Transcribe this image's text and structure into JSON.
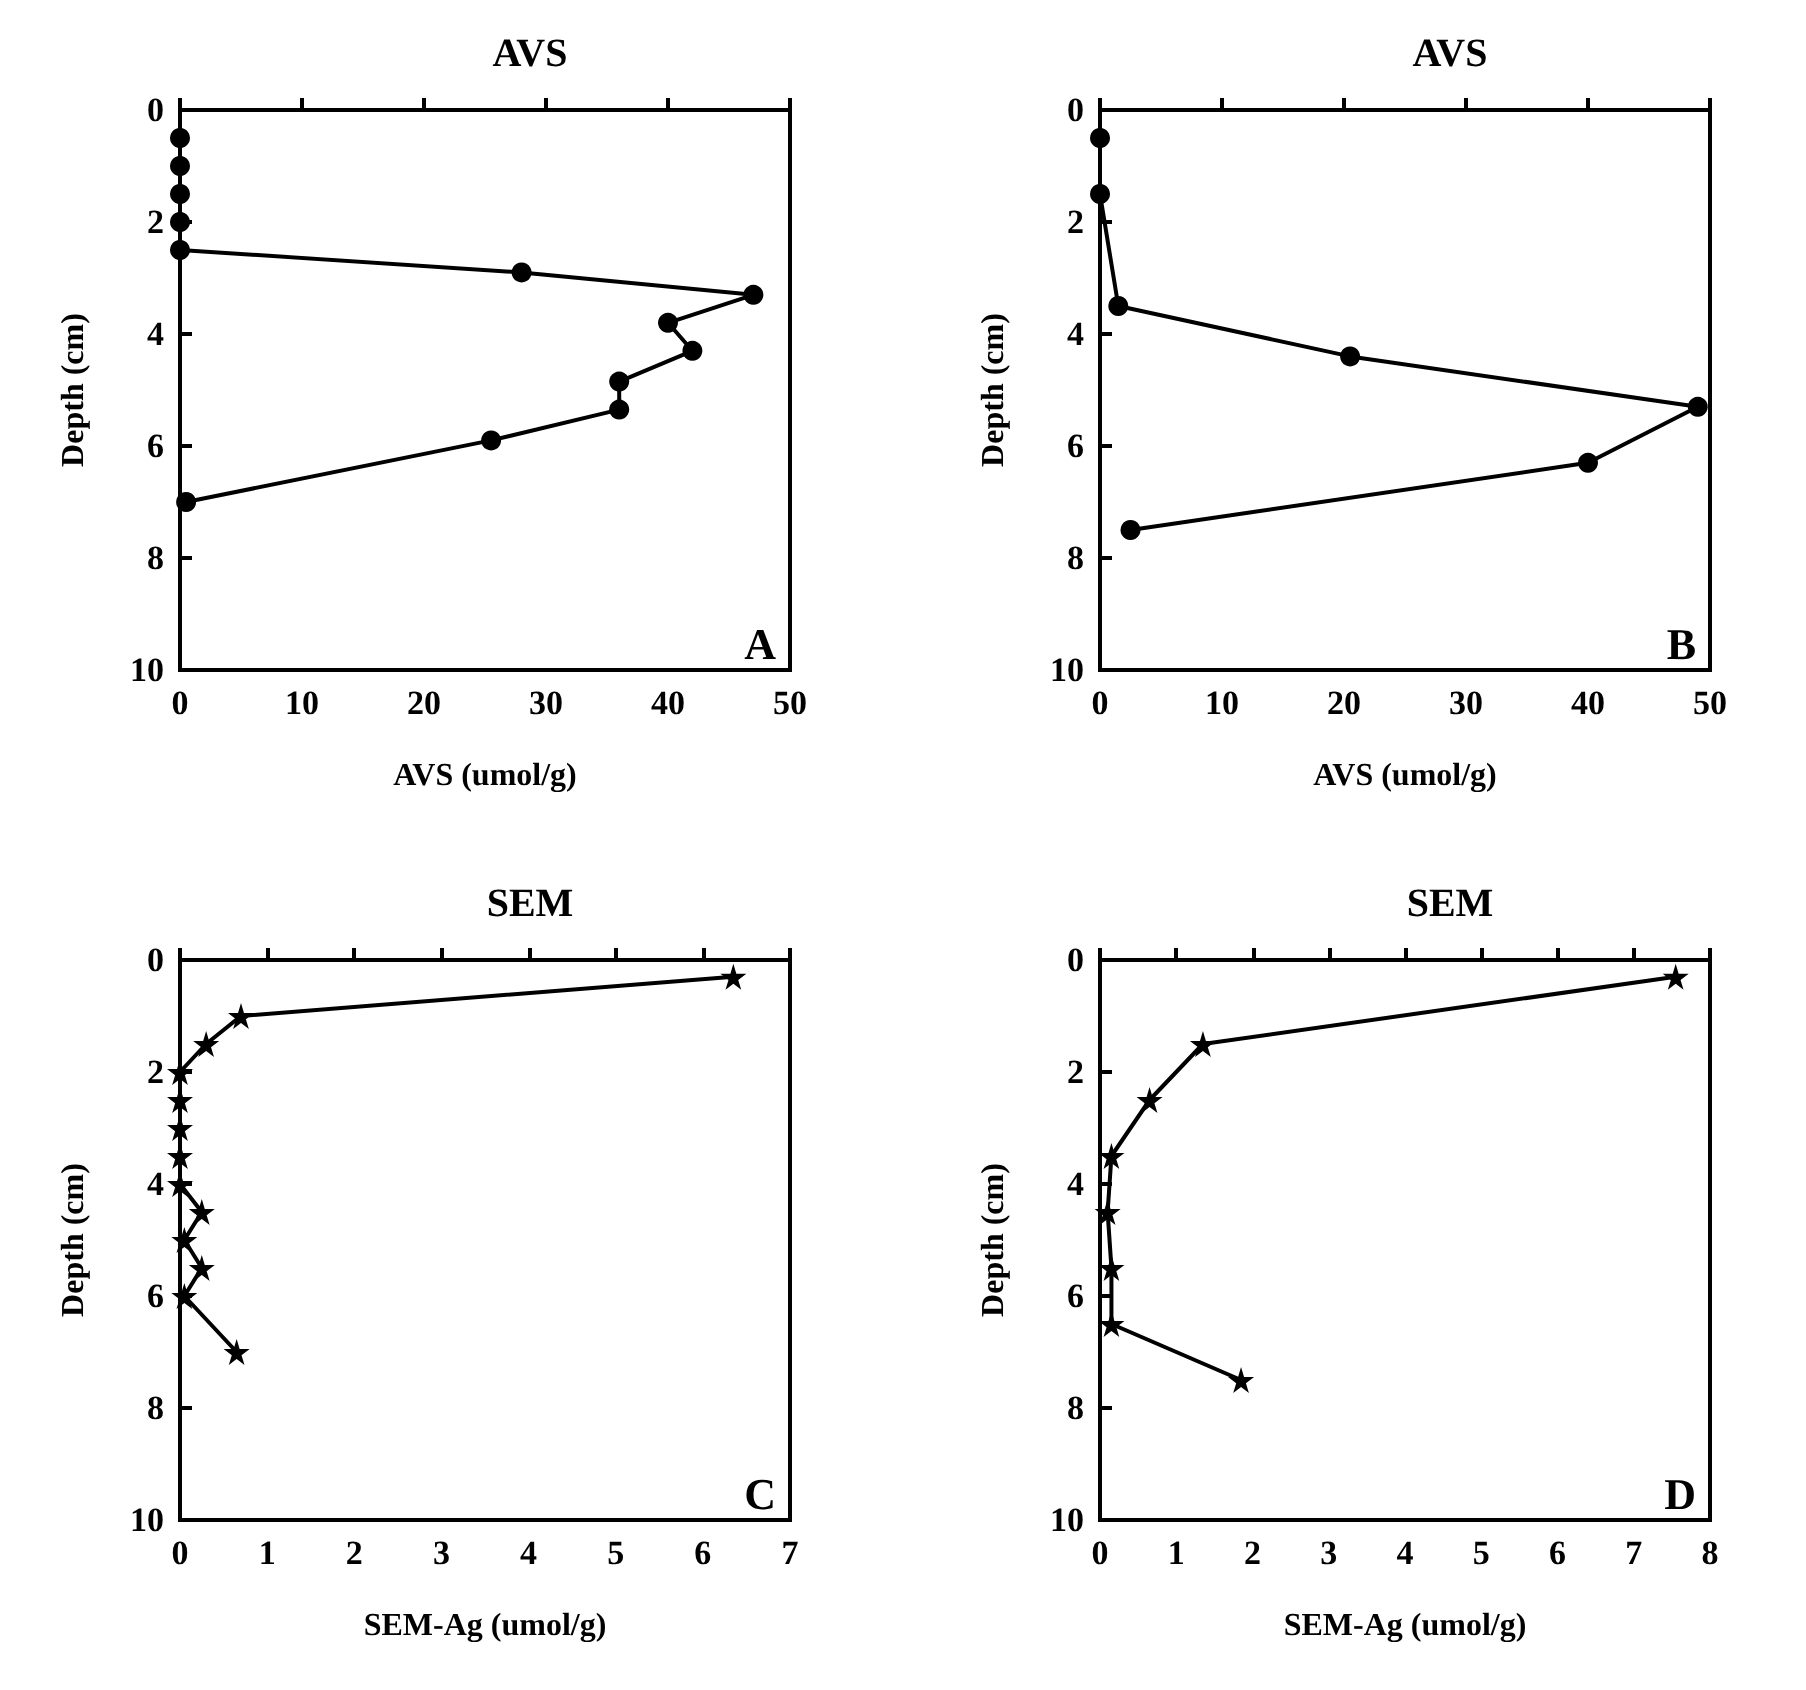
{
  "chart_data": [
    {
      "type": "line",
      "title": "AVS",
      "xlabel": "AVS (umol/g)",
      "ylabel": "Depth (cm)",
      "annotations": [
        "A"
      ],
      "x": [
        0,
        0,
        0,
        0,
        0,
        28,
        47,
        40,
        42,
        36,
        36,
        25.5,
        0.5
      ],
      "values": [
        0.5,
        1,
        1.5,
        2,
        2.5,
        2.9,
        3.3,
        3.8,
        4.3,
        4.85,
        5.35,
        5.9,
        7
      ],
      "color": "#000000",
      "marker": "circle",
      "line_style": "solid",
      "grid": false,
      "xlim": [
        0,
        50
      ],
      "xticks": [
        0,
        10,
        20,
        30,
        40,
        50
      ],
      "ylim": [
        10,
        0
      ],
      "yticks": [
        0,
        2,
        4,
        6,
        8,
        10
      ]
    },
    {
      "type": "line",
      "title": "AVS",
      "xlabel": "AVS (umol/g)",
      "ylabel": "Depth (cm)",
      "annotations": [
        "B"
      ],
      "x": [
        0,
        0,
        1.5,
        20.5,
        49,
        40,
        2.5
      ],
      "values": [
        0.5,
        1.5,
        3.5,
        4.4,
        5.3,
        6.3,
        7.5
      ],
      "color": "#000000",
      "marker": "circle",
      "line_style": "solid",
      "grid": false,
      "xlim": [
        0,
        50
      ],
      "xticks": [
        0,
        10,
        20,
        30,
        40,
        50
      ],
      "ylim": [
        10,
        0
      ],
      "yticks": [
        0,
        2,
        4,
        6,
        8,
        10
      ]
    },
    {
      "type": "line",
      "title": "SEM",
      "xlabel": "SEM-Ag (umol/g)",
      "ylabel": "Depth (cm)",
      "annotations": [
        "C"
      ],
      "x": [
        6.35,
        0.7,
        0.3,
        0,
        0,
        0,
        0,
        0,
        0.25,
        0.05,
        0.25,
        0.05,
        0.65
      ],
      "values": [
        0.3,
        1,
        1.5,
        2,
        2.5,
        3,
        3.5,
        4,
        4.5,
        5,
        5.5,
        6,
        7
      ],
      "color": "#000000",
      "marker": "star",
      "line_style": "solid",
      "grid": false,
      "xlim": [
        0,
        7
      ],
      "xticks": [
        0,
        1,
        2,
        3,
        4,
        5,
        6,
        7
      ],
      "ylim": [
        10,
        0
      ],
      "yticks": [
        0,
        2,
        4,
        6,
        8,
        10
      ]
    },
    {
      "type": "line",
      "title": "SEM",
      "xlabel": "SEM-Ag (umol/g)",
      "ylabel": "Depth (cm)",
      "annotations": [
        "D"
      ],
      "x": [
        7.55,
        1.35,
        0.65,
        0.15,
        0.1,
        0.15,
        0.15,
        1.85
      ],
      "values": [
        0.3,
        1.5,
        2.5,
        3.5,
        4.5,
        5.5,
        6.5,
        7.5
      ],
      "color": "#000000",
      "marker": "star",
      "line_style": "solid",
      "grid": false,
      "xlim": [
        0,
        8
      ],
      "xticks": [
        0,
        1,
        2,
        3,
        4,
        5,
        6,
        7,
        8
      ],
      "ylim": [
        10,
        0
      ],
      "yticks": [
        0,
        2,
        4,
        6,
        8,
        10
      ]
    }
  ]
}
